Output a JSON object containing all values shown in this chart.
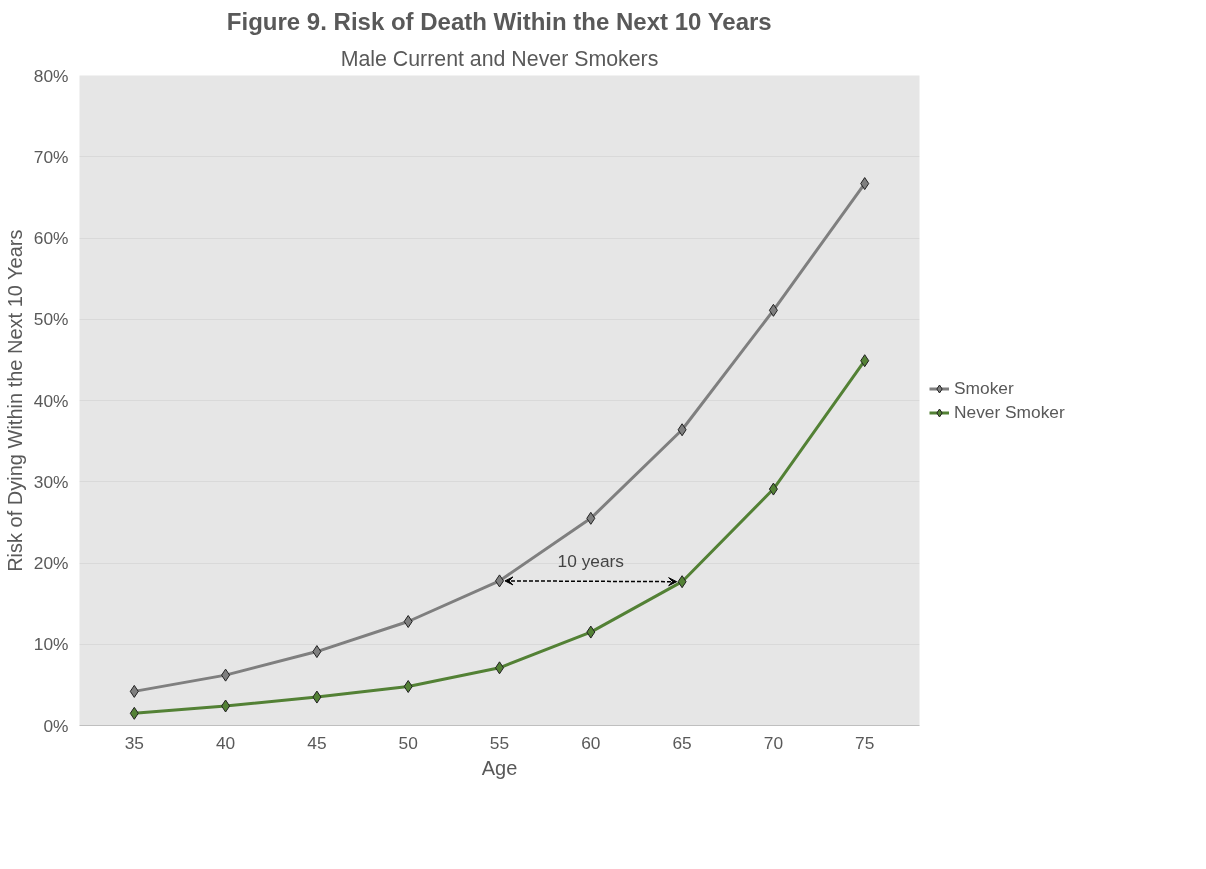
{
  "chart_data": {
    "type": "line",
    "title": "Figure 9. Risk of Death Within the Next 10 Years",
    "subtitle": "Male Current and Never Smokers",
    "xlabel": "Age",
    "ylabel": "Risk of Dying Within the Next 10 Years",
    "categories": [
      "35",
      "40",
      "45",
      "50",
      "55",
      "60",
      "65",
      "70",
      "75"
    ],
    "series": [
      {
        "name": "Smoker",
        "color": "#7f7f7f",
        "values": [
          4.2,
          6.2,
          9.1,
          12.8,
          17.8,
          25.5,
          36.4,
          51.1,
          66.7
        ]
      },
      {
        "name": "Never Smoker",
        "color": "#538135",
        "values": [
          1.5,
          2.4,
          3.5,
          4.8,
          7.1,
          11.5,
          17.7,
          29.1,
          44.9
        ]
      }
    ],
    "ylim": [
      0,
      80
    ],
    "yticks": [
      {
        "value": 0,
        "label": "0%"
      },
      {
        "value": 10,
        "label": "10%"
      },
      {
        "value": 20,
        "label": "20%"
      },
      {
        "value": 30,
        "label": "30%"
      },
      {
        "value": 40,
        "label": "40%"
      },
      {
        "value": 50,
        "label": "50%"
      },
      {
        "value": 60,
        "label": "60%"
      },
      {
        "value": 70,
        "label": "70%"
      },
      {
        "value": 80,
        "label": "80%"
      }
    ],
    "annotations": [
      "10 years"
    ],
    "grid": "y",
    "legend": "right",
    "marker": "diamond",
    "line_style": "solid"
  }
}
